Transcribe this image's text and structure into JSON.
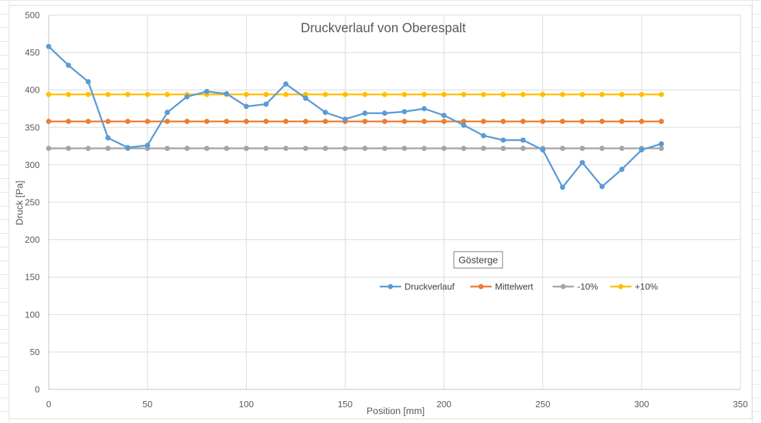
{
  "chart_data": {
    "type": "line",
    "title": "Druckverlauf von Oberespalt",
    "xlabel": "Position [mm]",
    "ylabel": "Druck [Pa]",
    "xlim": [
      0,
      350
    ],
    "ylim": [
      0,
      500
    ],
    "xticks": [
      0,
      50,
      100,
      150,
      200,
      250,
      300,
      350
    ],
    "yticks": [
      0,
      50,
      100,
      150,
      200,
      250,
      300,
      350,
      400,
      450,
      500
    ],
    "grid": true,
    "legend_position": "right-center",
    "legend_badge": "Gösterge",
    "x": [
      0,
      10,
      20,
      30,
      40,
      50,
      60,
      70,
      80,
      90,
      100,
      110,
      120,
      130,
      140,
      150,
      160,
      170,
      180,
      190,
      200,
      210,
      220,
      230,
      240,
      250,
      260,
      270,
      280,
      290,
      300,
      310
    ],
    "series": [
      {
        "name": "Druckverlauf",
        "color": "#5B9BD5",
        "values": [
          458,
          433,
          411,
          336,
          323,
          326,
          370,
          391,
          398,
          395,
          378,
          381,
          408,
          389,
          370,
          361,
          369,
          369,
          371,
          375,
          366,
          353,
          339,
          333,
          333,
          320,
          270,
          303,
          271,
          294,
          320,
          328
        ]
      },
      {
        "name": "Mittelwert",
        "color": "#ED7D31",
        "values": [
          358,
          358,
          358,
          358,
          358,
          358,
          358,
          358,
          358,
          358,
          358,
          358,
          358,
          358,
          358,
          358,
          358,
          358,
          358,
          358,
          358,
          358,
          358,
          358,
          358,
          358,
          358,
          358,
          358,
          358,
          358,
          358
        ]
      },
      {
        "name": "-10%",
        "color": "#A5A5A5",
        "values": [
          322,
          322,
          322,
          322,
          322,
          322,
          322,
          322,
          322,
          322,
          322,
          322,
          322,
          322,
          322,
          322,
          322,
          322,
          322,
          322,
          322,
          322,
          322,
          322,
          322,
          322,
          322,
          322,
          322,
          322,
          322,
          322
        ]
      },
      {
        "name": "+10%",
        "color": "#FFC000",
        "values": [
          394,
          394,
          394,
          394,
          394,
          394,
          394,
          394,
          394,
          394,
          394,
          394,
          394,
          394,
          394,
          394,
          394,
          394,
          394,
          394,
          394,
          394,
          394,
          394,
          394,
          394,
          394,
          394,
          394,
          394,
          394,
          394
        ]
      }
    ]
  }
}
